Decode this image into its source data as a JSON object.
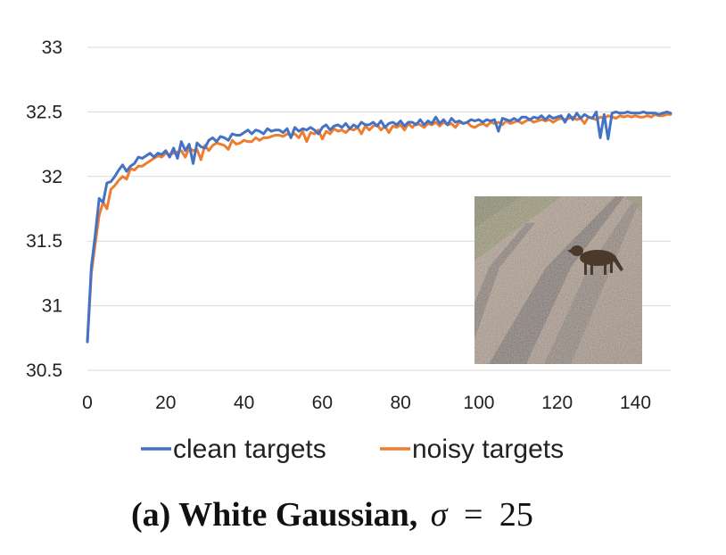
{
  "chart_data": {
    "type": "line",
    "title": "",
    "xlabel": "",
    "ylabel": "",
    "xlim": [
      0,
      149
    ],
    "ylim": [
      30.5,
      33
    ],
    "xticks": [
      0,
      20,
      40,
      60,
      80,
      100,
      120,
      140
    ],
    "yticks": [
      30.5,
      31,
      31.5,
      32,
      32.5,
      33
    ],
    "xtick_labels": [
      "0",
      "20",
      "40",
      "60",
      "80",
      "100",
      "120",
      "140"
    ],
    "ytick_labels": [
      "30.5",
      "31",
      "31.5",
      "32",
      "32.5",
      "33"
    ],
    "grid": "horizontal",
    "legend_position": "bottom",
    "series": [
      {
        "name": "clean targets",
        "color": "#4472C4",
        "x": [
          0,
          1,
          2,
          3,
          4,
          5,
          6,
          7,
          8,
          9,
          10,
          11,
          12,
          13,
          14,
          15,
          16,
          17,
          18,
          19,
          20,
          21,
          22,
          23,
          24,
          25,
          26,
          27,
          28,
          29,
          30,
          31,
          32,
          33,
          34,
          35,
          36,
          37,
          38,
          39,
          40,
          41,
          42,
          43,
          44,
          45,
          46,
          47,
          48,
          49,
          50,
          51,
          52,
          53,
          54,
          55,
          56,
          57,
          58,
          59,
          60,
          61,
          62,
          63,
          64,
          65,
          66,
          67,
          68,
          69,
          70,
          71,
          72,
          73,
          74,
          75,
          76,
          77,
          78,
          79,
          80,
          81,
          82,
          83,
          84,
          85,
          86,
          87,
          88,
          89,
          90,
          91,
          92,
          93,
          94,
          95,
          96,
          97,
          98,
          99,
          100,
          101,
          102,
          103,
          104,
          105,
          106,
          107,
          108,
          109,
          110,
          111,
          112,
          113,
          114,
          115,
          116,
          117,
          118,
          119,
          120,
          121,
          122,
          123,
          124,
          125,
          126,
          127,
          128,
          129,
          130,
          131,
          132,
          133,
          134,
          135,
          136,
          137,
          138,
          139,
          140,
          141,
          142,
          143,
          144,
          145,
          146,
          147,
          148,
          149
        ],
        "values": [
          30.72,
          31.3,
          31.55,
          31.83,
          31.8,
          31.95,
          31.96,
          32.0,
          32.05,
          32.09,
          32.04,
          32.08,
          32.1,
          32.15,
          32.14,
          32.16,
          32.18,
          32.15,
          32.18,
          32.17,
          32.2,
          32.15,
          32.22,
          32.14,
          32.27,
          32.2,
          32.25,
          32.1,
          32.26,
          32.23,
          32.22,
          32.28,
          32.3,
          32.27,
          32.31,
          32.3,
          32.28,
          32.33,
          32.32,
          32.32,
          32.34,
          32.36,
          32.33,
          32.36,
          32.35,
          32.33,
          32.37,
          32.35,
          32.36,
          32.36,
          32.34,
          32.37,
          32.3,
          32.38,
          32.35,
          32.37,
          32.36,
          32.38,
          32.36,
          32.33,
          32.38,
          32.4,
          32.36,
          32.39,
          32.4,
          32.38,
          32.41,
          32.37,
          32.4,
          32.38,
          32.42,
          32.4,
          32.4,
          32.42,
          32.39,
          32.43,
          32.38,
          32.41,
          32.42,
          32.4,
          32.43,
          32.39,
          32.42,
          32.42,
          32.4,
          32.44,
          32.4,
          32.43,
          32.41,
          32.46,
          32.41,
          32.44,
          32.4,
          32.45,
          32.42,
          32.43,
          32.41,
          32.42,
          32.44,
          32.43,
          32.44,
          32.42,
          32.44,
          32.43,
          32.44,
          32.35,
          32.45,
          32.44,
          32.43,
          32.45,
          32.43,
          32.46,
          32.46,
          32.44,
          32.46,
          32.45,
          32.47,
          32.44,
          32.47,
          32.45,
          32.46,
          32.47,
          32.42,
          32.48,
          32.44,
          32.49,
          32.45,
          32.48,
          32.46,
          32.45,
          32.5,
          32.3,
          32.48,
          32.29,
          32.49,
          32.5,
          32.49,
          32.49,
          32.5,
          32.49,
          32.49,
          32.49,
          32.5,
          32.49,
          32.49,
          32.49,
          32.48,
          32.49,
          32.5,
          32.49
        ]
      },
      {
        "name": "noisy targets",
        "color": "#ED7D31",
        "x": [
          0,
          1,
          2,
          3,
          4,
          5,
          6,
          7,
          8,
          9,
          10,
          11,
          12,
          13,
          14,
          15,
          16,
          17,
          18,
          19,
          20,
          21,
          22,
          23,
          24,
          25,
          26,
          27,
          28,
          29,
          30,
          31,
          32,
          33,
          34,
          35,
          36,
          37,
          38,
          39,
          40,
          41,
          42,
          43,
          44,
          45,
          46,
          47,
          48,
          49,
          50,
          51,
          52,
          53,
          54,
          55,
          56,
          57,
          58,
          59,
          60,
          61,
          62,
          63,
          64,
          65,
          66,
          67,
          68,
          69,
          70,
          71,
          72,
          73,
          74,
          75,
          76,
          77,
          78,
          79,
          80,
          81,
          82,
          83,
          84,
          85,
          86,
          87,
          88,
          89,
          90,
          91,
          92,
          93,
          94,
          95,
          96,
          97,
          98,
          99,
          100,
          101,
          102,
          103,
          104,
          105,
          106,
          107,
          108,
          109,
          110,
          111,
          112,
          113,
          114,
          115,
          116,
          117,
          118,
          119,
          120,
          121,
          122,
          123,
          124,
          125,
          126,
          127,
          128,
          129,
          130,
          131,
          132,
          133,
          134,
          135,
          136,
          137,
          138,
          139,
          140,
          141,
          142,
          143,
          144,
          145,
          146,
          147,
          148,
          149
        ],
        "values": [
          30.72,
          31.25,
          31.48,
          31.7,
          31.8,
          31.75,
          31.9,
          31.93,
          31.97,
          32.0,
          31.98,
          32.06,
          32.05,
          32.08,
          32.08,
          32.1,
          32.12,
          32.14,
          32.16,
          32.15,
          32.18,
          32.17,
          32.18,
          32.19,
          32.2,
          32.15,
          32.22,
          32.2,
          32.21,
          32.13,
          32.24,
          32.2,
          32.24,
          32.26,
          32.25,
          32.24,
          32.21,
          32.28,
          32.25,
          32.26,
          32.28,
          32.27,
          32.27,
          32.3,
          32.28,
          32.3,
          32.3,
          32.31,
          32.32,
          32.32,
          32.31,
          32.33,
          32.32,
          32.33,
          32.3,
          32.35,
          32.27,
          32.34,
          32.33,
          32.36,
          32.29,
          32.35,
          32.33,
          32.37,
          32.35,
          32.36,
          32.34,
          32.37,
          32.36,
          32.38,
          32.33,
          32.39,
          32.36,
          32.39,
          32.4,
          32.36,
          32.39,
          32.34,
          32.39,
          32.38,
          32.4,
          32.36,
          32.41,
          32.38,
          32.41,
          32.4,
          32.38,
          32.41,
          32.4,
          32.42,
          32.39,
          32.42,
          32.4,
          32.41,
          32.38,
          32.42,
          32.41,
          32.42,
          32.39,
          32.38,
          32.4,
          32.41,
          32.39,
          32.42,
          32.41,
          32.42,
          32.4,
          32.43,
          32.41,
          32.42,
          32.43,
          32.41,
          32.43,
          32.44,
          32.42,
          32.43,
          32.44,
          32.43,
          32.44,
          32.42,
          32.44,
          32.45,
          32.44,
          32.45,
          32.46,
          32.44,
          32.45,
          32.41,
          32.46,
          32.45,
          32.44,
          32.46,
          32.45,
          32.47,
          32.46,
          32.45,
          32.47,
          32.46,
          32.47,
          32.46,
          32.47,
          32.46,
          32.46,
          32.47,
          32.46,
          32.48,
          32.47,
          32.47,
          32.48,
          32.48
        ]
      }
    ]
  },
  "inset_image": {
    "icon": "hyena-on-noisy-dirt-road-photo"
  },
  "caption": {
    "bold_text": "(a) White Gaussian,",
    "symbol": "σ",
    "equals": "=",
    "number": "25"
  }
}
